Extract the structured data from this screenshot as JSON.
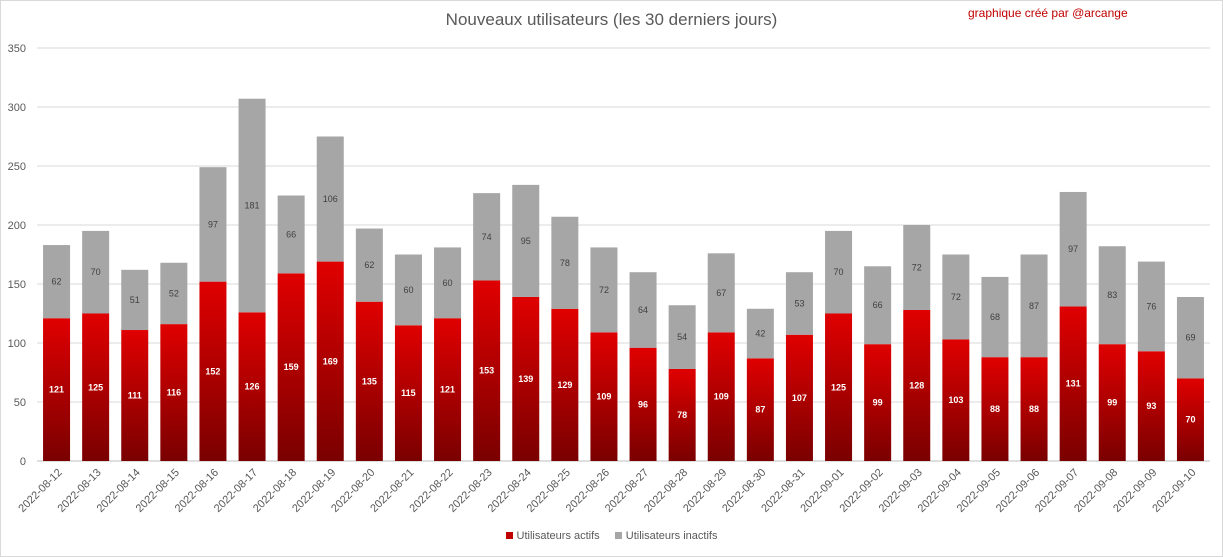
{
  "credit": "graphique créé par @arcange",
  "chart_data": {
    "type": "bar",
    "stacked": true,
    "title": "Nouveaux utilisateurs (les 30 derniers jours)",
    "xlabel": "",
    "ylabel": "",
    "ylim": [
      0,
      350
    ],
    "yticks": [
      0,
      50,
      100,
      150,
      200,
      250,
      300,
      350
    ],
    "grid": true,
    "legend_position": "bottom",
    "categories": [
      "2022-08-12",
      "2022-08-13",
      "2022-08-14",
      "2022-08-15",
      "2022-08-16",
      "2022-08-17",
      "2022-08-18",
      "2022-08-19",
      "2022-08-20",
      "2022-08-21",
      "2022-08-22",
      "2022-08-23",
      "2022-08-24",
      "2022-08-25",
      "2022-08-26",
      "2022-08-27",
      "2022-08-28",
      "2022-08-29",
      "2022-08-30",
      "2022-08-31",
      "2022-09-01",
      "2022-09-02",
      "2022-09-03",
      "2022-09-04",
      "2022-09-05",
      "2022-09-06",
      "2022-09-07",
      "2022-09-08",
      "2022-09-09",
      "2022-09-10"
    ],
    "series": [
      {
        "name": "Utilisateurs actifs",
        "color": "#c00000",
        "values": [
          121,
          125,
          111,
          116,
          152,
          126,
          159,
          169,
          135,
          115,
          121,
          153,
          139,
          129,
          109,
          96,
          78,
          109,
          87,
          107,
          125,
          99,
          128,
          103,
          88,
          88,
          131,
          99,
          93,
          70
        ]
      },
      {
        "name": "Utilisateurs inactifs",
        "color": "#a6a6a6",
        "values": [
          62,
          70,
          51,
          52,
          97,
          181,
          66,
          106,
          62,
          60,
          60,
          74,
          95,
          78,
          72,
          64,
          54,
          67,
          42,
          53,
          70,
          66,
          72,
          72,
          68,
          87,
          97,
          83,
          76,
          69
        ]
      }
    ]
  }
}
